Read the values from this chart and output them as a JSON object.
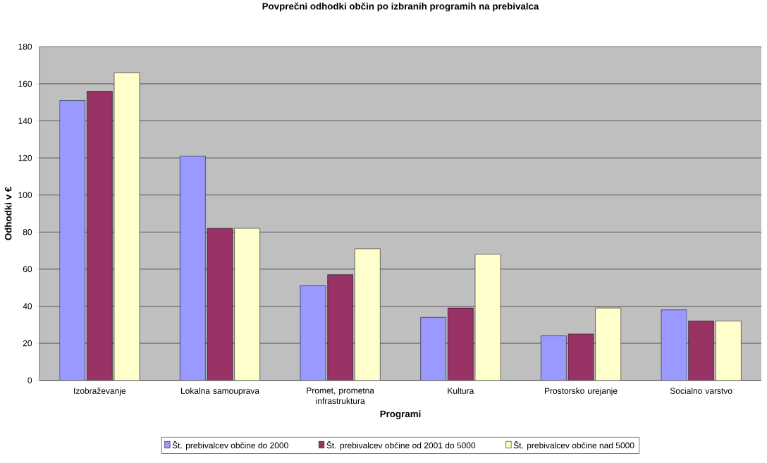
{
  "chart_data": {
    "type": "bar",
    "title": "Povprečni odhodki občin po izbranih programih na prebivalca",
    "xlabel": "Programi",
    "ylabel": "Odhodki v €",
    "categories": [
      "Izobraževanje",
      "Lokalna samouprava",
      "Promet, prometna infrastruktura",
      "Kultura",
      "Prostorsko urejanje",
      "Socialno varstvo"
    ],
    "series": [
      {
        "name": "Št. prebivalcev občine do 2000",
        "color": "#9999ff",
        "values": [
          151,
          121,
          51,
          34,
          24,
          38
        ]
      },
      {
        "name": "Št. prebivalcev občine od 2001 do 5000",
        "color": "#993366",
        "values": [
          156,
          82,
          57,
          39,
          25,
          32
        ]
      },
      {
        "name": "Št. prebivalcev občine nad 5000",
        "color": "#ffffcc",
        "values": [
          166,
          82,
          71,
          68,
          39,
          32
        ]
      }
    ],
    "ylim": [
      0,
      180
    ],
    "yticks": [
      0,
      20,
      40,
      60,
      80,
      100,
      120,
      140,
      160,
      180
    ],
    "grid": "y",
    "legend": "bottom"
  }
}
